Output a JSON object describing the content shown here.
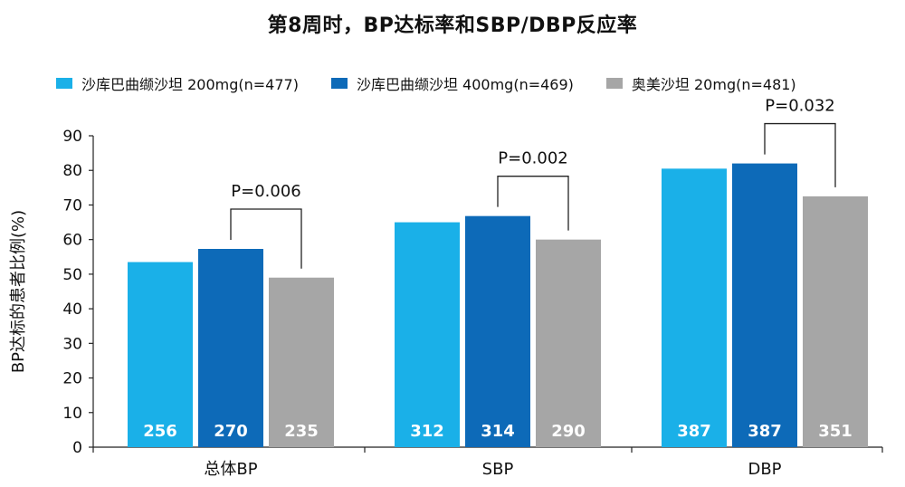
{
  "chart_data": {
    "type": "bar",
    "title": "第8周时，BP达标率和SBP/DBP反应率",
    "ylabel": "BP达标的患者比例(%)",
    "ylim": [
      0,
      90
    ],
    "yticks": [
      0,
      10,
      20,
      30,
      40,
      50,
      60,
      70,
      80,
      90
    ],
    "categories": [
      "总体BP",
      "SBP",
      "DBP"
    ],
    "series": [
      {
        "name": "沙库巴曲缬沙坦 200mg(n=477)",
        "color": "#1ab0e8",
        "values": [
          53.5,
          65,
          80.5
        ],
        "labels": [
          "256",
          "312",
          "387"
        ]
      },
      {
        "name": "沙库巴曲缬沙坦 400mg(n=469)",
        "color": "#0d6ab8",
        "values": [
          57.3,
          66.8,
          82
        ],
        "labels": [
          "270",
          "314",
          "387"
        ]
      },
      {
        "name": "奥美沙坦 20mg(n=481)",
        "color": "#a6a6a6",
        "values": [
          49,
          60,
          72.5
        ],
        "labels": [
          "235",
          "290",
          "351"
        ]
      }
    ],
    "annotations": [
      {
        "category": 0,
        "text": "P=0.006"
      },
      {
        "category": 1,
        "text": "P=0.002"
      },
      {
        "category": 2,
        "text": "P=0.032"
      }
    ],
    "grid": false,
    "legend_position": "top"
  }
}
